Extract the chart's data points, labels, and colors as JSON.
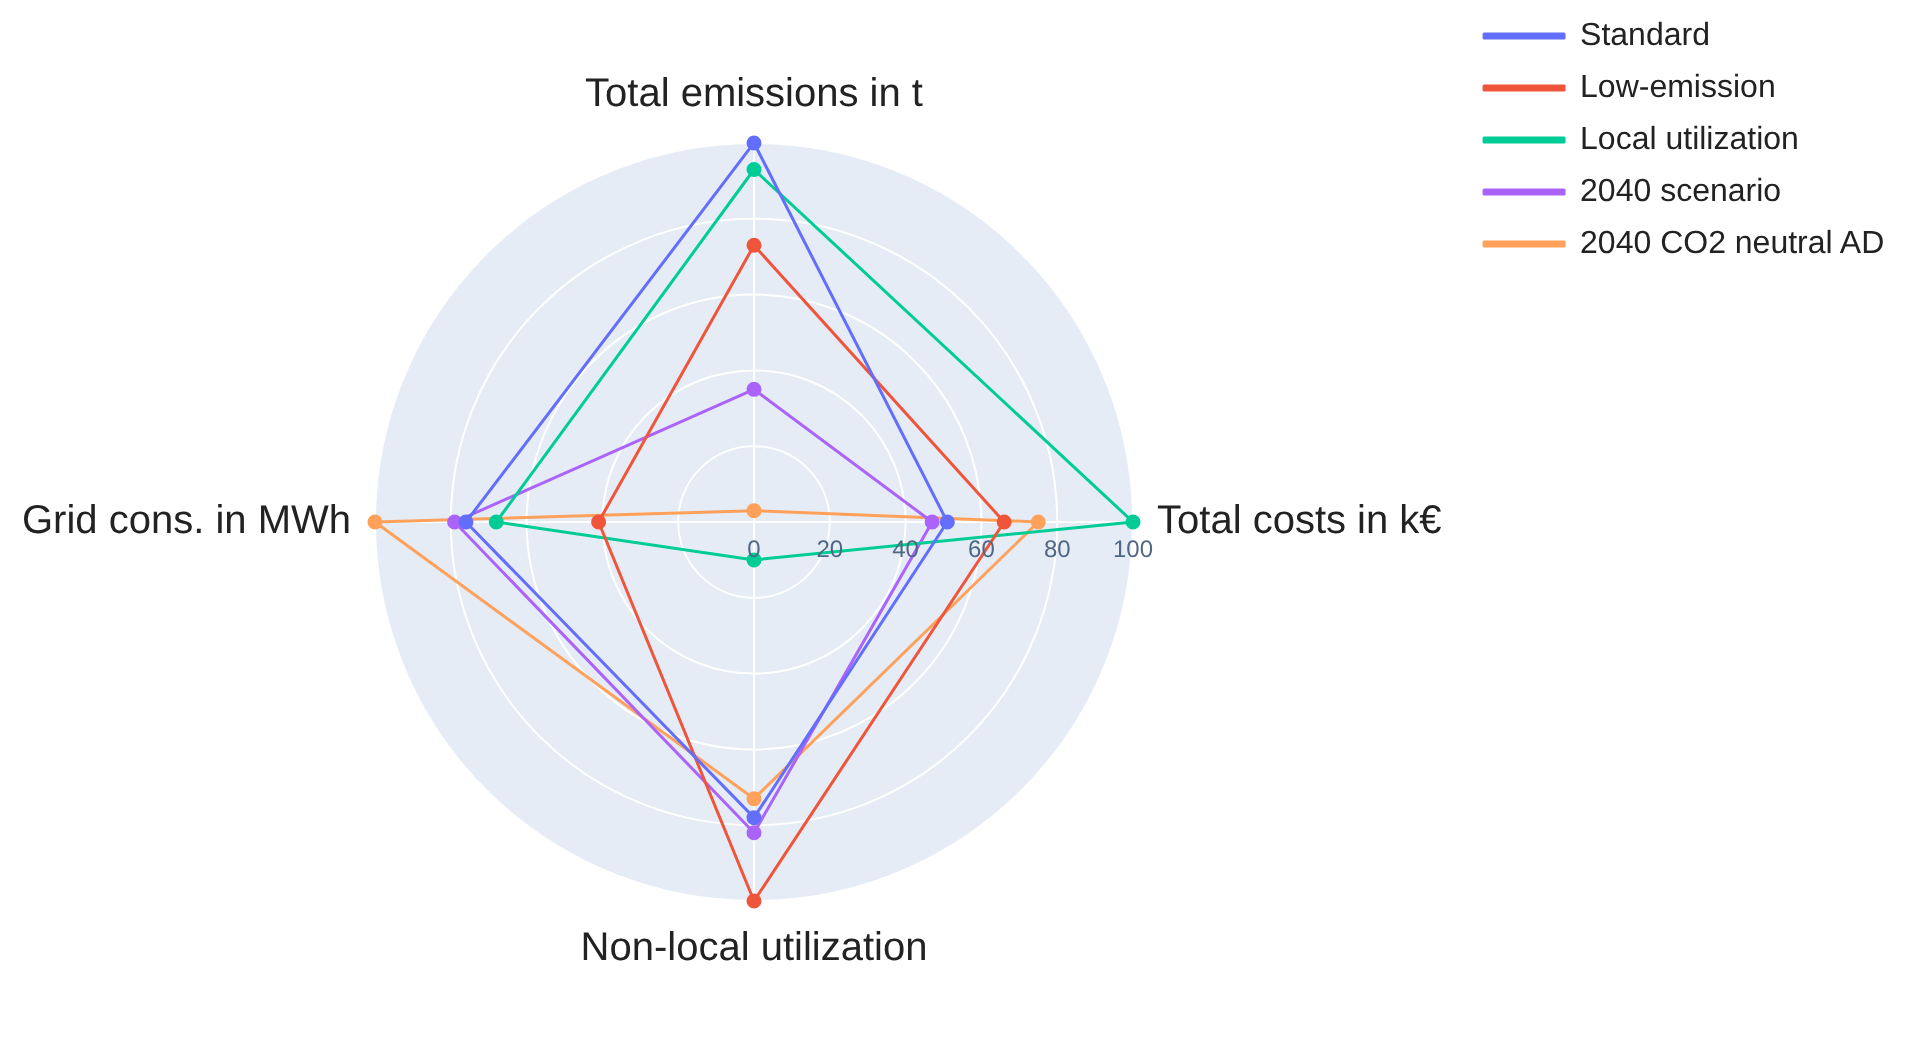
{
  "chart_data": {
    "type": "radar",
    "categories": [
      "Total emissions in t",
      "Total costs in k€",
      "Non-local utilization",
      "Grid cons. in MWh"
    ],
    "series": [
      {
        "name": "Standard",
        "color": "#636efa",
        "values": [
          100,
          51,
          78,
          76
        ]
      },
      {
        "name": "Low-emission",
        "color": "#ef553b",
        "values": [
          73,
          66,
          100,
          41
        ]
      },
      {
        "name": "Local utilization",
        "color": "#00cc96",
        "values": [
          93,
          100,
          10,
          68
        ]
      },
      {
        "name": "2040 scenario",
        "color": "#ab63fa",
        "values": [
          35,
          47,
          82,
          79
        ]
      },
      {
        "name": "2040 CO2 neutral AD",
        "color": "#ffa15a",
        "values": [
          3,
          75,
          73,
          100
        ]
      }
    ],
    "ylim": [
      0,
      100
    ],
    "yticks": [
      0,
      20,
      40,
      60,
      80,
      100
    ],
    "grid": true,
    "legend": "top right",
    "marker": "circle",
    "line_style": "solid"
  }
}
